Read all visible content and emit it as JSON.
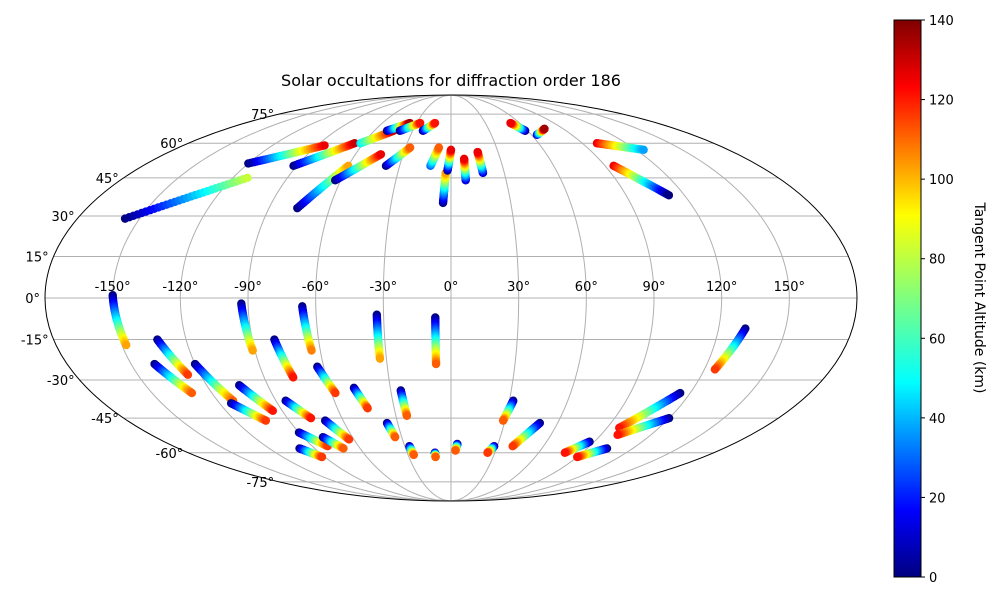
{
  "chart_data": {
    "type": "scatter",
    "projection": "mollweide",
    "title": "Solar occultations for diffraction order 186",
    "xlabel": "",
    "ylabel": "",
    "xlim": [
      -180,
      180
    ],
    "ylim": [
      -90,
      90
    ],
    "grid": true,
    "longitude_ticks": [
      "-150°",
      "-120°",
      "-90°",
      "-60°",
      "-30°",
      "0°",
      "30°",
      "60°",
      "90°",
      "120°",
      "150°"
    ],
    "latitude_ticks": [
      "75°",
      "60°",
      "45°",
      "30°",
      "15°",
      "0°",
      "-15°",
      "-30°",
      "-45°",
      "-60°",
      "-75°"
    ],
    "colorbar": {
      "label": "Tangent Point Altitude (km)",
      "range": [
        0,
        140
      ],
      "ticks": [
        "0",
        "20",
        "40",
        "60",
        "80",
        "100",
        "120",
        "140"
      ],
      "colormap": "jet"
    },
    "series": [
      {
        "name": "occultation tracks",
        "tracks": [
          {
            "lon_start": -157.0,
            "lat_start": 29.0,
            "lon_end": -112.0,
            "lat_end": 45.0,
            "alt_start": 0,
            "alt_end": 80
          },
          {
            "lon_start": -120.0,
            "lat_start": 51.0,
            "lon_end": -85.0,
            "lat_end": 59.0,
            "alt_start": 0,
            "alt_end": 125
          },
          {
            "lon_start": -92.0,
            "lat_start": 50.0,
            "lon_end": -66.0,
            "lat_end": 60.0,
            "alt_start": 0,
            "alt_end": 130
          },
          {
            "lon_start": -76.0,
            "lat_start": 33.0,
            "lon_end": -60.0,
            "lat_end": 50.0,
            "alt_start": 0,
            "alt_end": 100
          },
          {
            "lon_start": -63.0,
            "lat_start": 44.0,
            "lon_end": -44.0,
            "lat_end": 55.0,
            "alt_start": 0,
            "alt_end": 125
          },
          {
            "lon_start": -38.0,
            "lat_start": 50.0,
            "lon_end": -27.0,
            "lat_end": 58.0,
            "alt_start": 0,
            "alt_end": 110
          },
          {
            "lon_start": -62.0,
            "lat_start": 60.0,
            "lon_end": -45.0,
            "lat_end": 66.0,
            "alt_start": 50,
            "alt_end": 130
          },
          {
            "lon_start": -50.0,
            "lat_start": 66.0,
            "lon_end": -36.0,
            "lat_end": 70.0,
            "alt_start": 0,
            "alt_end": 135
          },
          {
            "lon_start": -40.0,
            "lat_start": 66.0,
            "lon_end": -27.0,
            "lat_end": 70.0,
            "alt_start": 0,
            "alt_end": 120
          },
          {
            "lon_start": -22.0,
            "lat_start": 66.0,
            "lon_end": -14.0,
            "lat_end": 70.0,
            "alt_start": 0,
            "alt_end": 120
          },
          {
            "lon_start": -12.0,
            "lat_start": 50.0,
            "lon_end": -8.0,
            "lat_end": 58.0,
            "alt_start": 30,
            "alt_end": 110
          },
          {
            "lon_start": -4.0,
            "lat_start": 35.0,
            "lon_end": -3.0,
            "lat_end": 47.0,
            "alt_start": 0,
            "alt_end": 100
          },
          {
            "lon_start": -2.0,
            "lat_start": 48.0,
            "lon_end": 0.0,
            "lat_end": 57.0,
            "alt_start": 0,
            "alt_end": 125
          },
          {
            "lon_start": 8.0,
            "lat_start": 44.0,
            "lon_end": 8.0,
            "lat_end": 53.0,
            "alt_start": 10,
            "alt_end": 125
          },
          {
            "lon_start": 18.0,
            "lat_start": 47.0,
            "lon_end": 17.0,
            "lat_end": 56.0,
            "alt_start": 10,
            "alt_end": 125
          },
          {
            "lon_start": 58.0,
            "lat_start": 66.0,
            "lon_end": 52.0,
            "lat_end": 70.0,
            "alt_start": 0,
            "alt_end": 125
          },
          {
            "lon_start": 64.0,
            "lat_start": 64.0,
            "lon_end": 75.0,
            "lat_end": 67.0,
            "alt_start": 10,
            "alt_end": 135
          },
          {
            "lon_start": 100.0,
            "lat_start": 60.0,
            "lon_end": 125.0,
            "lat_end": 57.0,
            "alt_start": 125,
            "alt_end": 40
          },
          {
            "lon_start": 95.0,
            "lat_start": 50.0,
            "lon_end": 112.0,
            "lat_end": 38.0,
            "alt_start": 125,
            "alt_end": 0
          },
          {
            "lon_start": -150.0,
            "lat_start": 1.0,
            "lon_end": -148.0,
            "lat_end": -17.0,
            "alt_start": 0,
            "alt_end": 100
          },
          {
            "lon_start": -133.0,
            "lat_start": -15.0,
            "lon_end": -126.0,
            "lat_end": -28.0,
            "alt_start": 0,
            "alt_end": 115
          },
          {
            "lon_start": -139.0,
            "lat_start": -24.0,
            "lon_end": -130.0,
            "lat_end": -35.0,
            "alt_start": 0,
            "alt_end": 110
          },
          {
            "lon_start": -120.0,
            "lat_start": -24.0,
            "lon_end": -112.0,
            "lat_end": -38.0,
            "alt_start": 0,
            "alt_end": 110
          },
          {
            "lon_start": -114.0,
            "lat_start": -39.0,
            "lon_end": -103.0,
            "lat_end": -46.0,
            "alt_start": 0,
            "alt_end": 115
          },
          {
            "lon_start": -104.0,
            "lat_start": -32.0,
            "lon_end": -95.0,
            "lat_end": -42.0,
            "alt_start": 0,
            "alt_end": 120
          },
          {
            "lon_start": -93.0,
            "lat_start": -2.0,
            "lon_end": -91.0,
            "lat_end": -19.0,
            "alt_start": 0,
            "alt_end": 100
          },
          {
            "lon_start": -80.0,
            "lat_start": -15.0,
            "lon_end": -76.0,
            "lat_end": -29.0,
            "alt_start": 0,
            "alt_end": 120
          },
          {
            "lon_start": -66.0,
            "lat_start": -3.0,
            "lon_end": -64.0,
            "lat_end": -19.0,
            "alt_start": 0,
            "alt_end": 105
          },
          {
            "lon_start": -63.0,
            "lat_start": -25.0,
            "lon_end": -58.0,
            "lat_end": -35.0,
            "alt_start": 0,
            "alt_end": 115
          },
          {
            "lon_start": -85.0,
            "lat_start": -38.0,
            "lon_end": -77.0,
            "lat_end": -45.0,
            "alt_start": 0,
            "alt_end": 120
          },
          {
            "lon_start": -90.0,
            "lat_start": -51.0,
            "lon_end": -80.0,
            "lat_end": -57.0,
            "alt_start": 0,
            "alt_end": 115
          },
          {
            "lon_start": -100.0,
            "lat_start": -58.0,
            "lon_end": -92.0,
            "lat_end": -62.0,
            "alt_start": 0,
            "alt_end": 115
          },
          {
            "lon_start": -70.0,
            "lat_start": -46.0,
            "lon_end": -63.0,
            "lat_end": -54.0,
            "alt_start": 0,
            "alt_end": 115
          },
          {
            "lon_start": -78.0,
            "lat_start": -53.0,
            "lon_end": -71.0,
            "lat_end": -58.0,
            "alt_start": 0,
            "alt_end": 110
          },
          {
            "lon_start": -48.0,
            "lat_start": -33.0,
            "lon_end": -44.0,
            "lat_end": -41.0,
            "alt_start": 0,
            "alt_end": 115
          },
          {
            "lon_start": -33.0,
            "lat_start": -6.0,
            "lon_end": -33.0,
            "lat_end": -22.0,
            "alt_start": 0,
            "alt_end": 100
          },
          {
            "lon_start": -25.0,
            "lat_start": -34.0,
            "lon_end": -24.0,
            "lat_end": -44.0,
            "alt_start": 0,
            "alt_end": 110
          },
          {
            "lon_start": -36.0,
            "lat_start": -47.0,
            "lon_end": -34.0,
            "lat_end": -53.0,
            "alt_start": 0,
            "alt_end": 110
          },
          {
            "lon_start": -27.0,
            "lat_start": -57.0,
            "lon_end": -26.0,
            "lat_end": -61.0,
            "alt_start": 0,
            "alt_end": 110
          },
          {
            "lon_start": -7.0,
            "lat_start": -7.0,
            "lon_end": -7.0,
            "lat_end": -24.0,
            "alt_start": 0,
            "alt_end": 110
          },
          {
            "lon_start": -11.0,
            "lat_start": -60.0,
            "lon_end": -11.0,
            "lat_end": -62.0,
            "alt_start": 0,
            "alt_end": 110
          },
          {
            "lon_start": 4.0,
            "lat_start": -56.0,
            "lon_end": 3.0,
            "lat_end": -59.0,
            "alt_start": 0,
            "alt_end": 110
          },
          {
            "lon_start": 32.0,
            "lat_start": -38.0,
            "lon_end": 29.0,
            "lat_end": -46.0,
            "alt_start": 0,
            "alt_end": 110
          },
          {
            "lon_start": 28.0,
            "lat_start": -57.0,
            "lon_end": 25.0,
            "lat_end": -60.0,
            "alt_start": 0,
            "alt_end": 115
          },
          {
            "lon_start": 50.0,
            "lat_start": -47.0,
            "lon_end": 40.0,
            "lat_end": -57.0,
            "alt_start": 0,
            "alt_end": 115
          },
          {
            "lon_start": 87.0,
            "lat_start": -55.0,
            "lon_end": 78.0,
            "lat_end": -60.0,
            "alt_start": 0,
            "alt_end": 120
          },
          {
            "lon_start": 115.0,
            "lat_start": -35.0,
            "lon_end": 97.0,
            "lat_end": -49.0,
            "alt_start": 0,
            "alt_end": 120
          },
          {
            "lon_start": 120.0,
            "lat_start": -45.0,
            "lon_end": 100.0,
            "lat_end": -52.0,
            "alt_start": 0,
            "alt_end": 120
          },
          {
            "lon_start": 132.0,
            "lat_start": -11.0,
            "lon_end": 125.0,
            "lat_end": -26.0,
            "alt_start": 0,
            "alt_end": 115
          },
          {
            "lon_start": 103.0,
            "lat_start": -58.0,
            "lon_end": 90.0,
            "lat_end": -62.0,
            "alt_start": 0,
            "alt_end": 120
          }
        ]
      }
    ]
  }
}
